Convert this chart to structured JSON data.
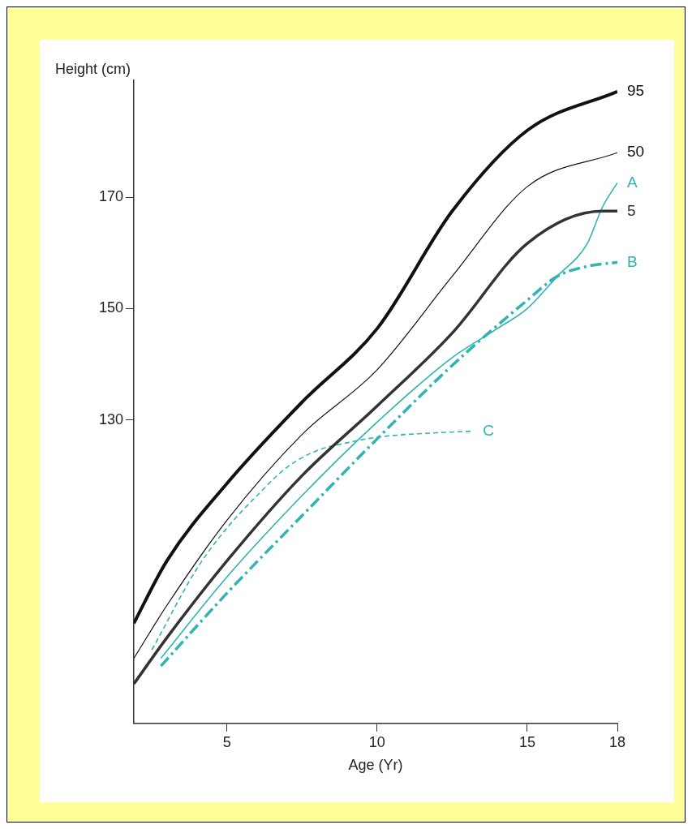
{
  "chart_data": {
    "type": "line",
    "xlabel": "Age (Yr)",
    "ylabel": "Height (cm)",
    "xlim": [
      1.9,
      18
    ],
    "xticks": [
      5,
      10,
      15,
      18
    ],
    "ylim": [
      75.5,
      191
    ],
    "yticks": [
      130,
      150,
      170
    ],
    "grid": false,
    "legend": false,
    "marker": "none",
    "series": [
      {
        "name": "95",
        "color": "#111111",
        "line_style": "solid",
        "x": [
          1.9,
          3,
          5,
          7.5,
          10,
          12.5,
          15,
          18
        ],
        "values": [
          93.5,
          104.7,
          118.6,
          133.2,
          146.4,
          167.5,
          182,
          189
        ]
      },
      {
        "name": "50",
        "color": "#111111",
        "line_style": "solid",
        "x": [
          1.9,
          3,
          5,
          7.5,
          10,
          12.5,
          15,
          18
        ],
        "values": [
          87.2,
          96.7,
          112,
          127.4,
          139,
          155.8,
          171.9,
          178
        ]
      },
      {
        "name": "5",
        "color": "#333333",
        "line_style": "solid",
        "x": [
          1.9,
          3,
          5,
          7.5,
          10,
          12.5,
          15,
          17.5,
          18
        ],
        "values": [
          82.6,
          90.9,
          104.7,
          120,
          132.5,
          145.6,
          161.7,
          167.5,
          167.5
        ]
      },
      {
        "name": "A",
        "color": "#2fb3b3",
        "line_style": "solid",
        "x": [
          2.8,
          5,
          7.5,
          10,
          12.5,
          14,
          15,
          16,
          17,
          17.5,
          18
        ],
        "values": [
          87.2,
          101.8,
          116.4,
          129.6,
          141.2,
          146.4,
          150,
          155.8,
          161.7,
          168.2,
          172.6
        ]
      },
      {
        "name": "B",
        "color": "#2fb3b3",
        "line_style": "dashdot",
        "x": [
          2.8,
          5,
          7.5,
          10,
          12.5,
          15,
          16,
          17,
          18
        ],
        "values": [
          85.8,
          98.9,
          112.8,
          126.6,
          139.8,
          151.5,
          155.8,
          157.6,
          158.3
        ]
      },
      {
        "name": "C",
        "color": "#2fb3b3",
        "line_style": "dashed",
        "x": [
          2.5,
          4,
          5,
          6,
          7,
          8,
          9,
          10,
          11,
          12,
          13.2
        ],
        "values": [
          88.7,
          103.3,
          110.6,
          116.4,
          121.5,
          124.5,
          125.9,
          126.9,
          127.4,
          127.7,
          128
        ]
      }
    ]
  }
}
